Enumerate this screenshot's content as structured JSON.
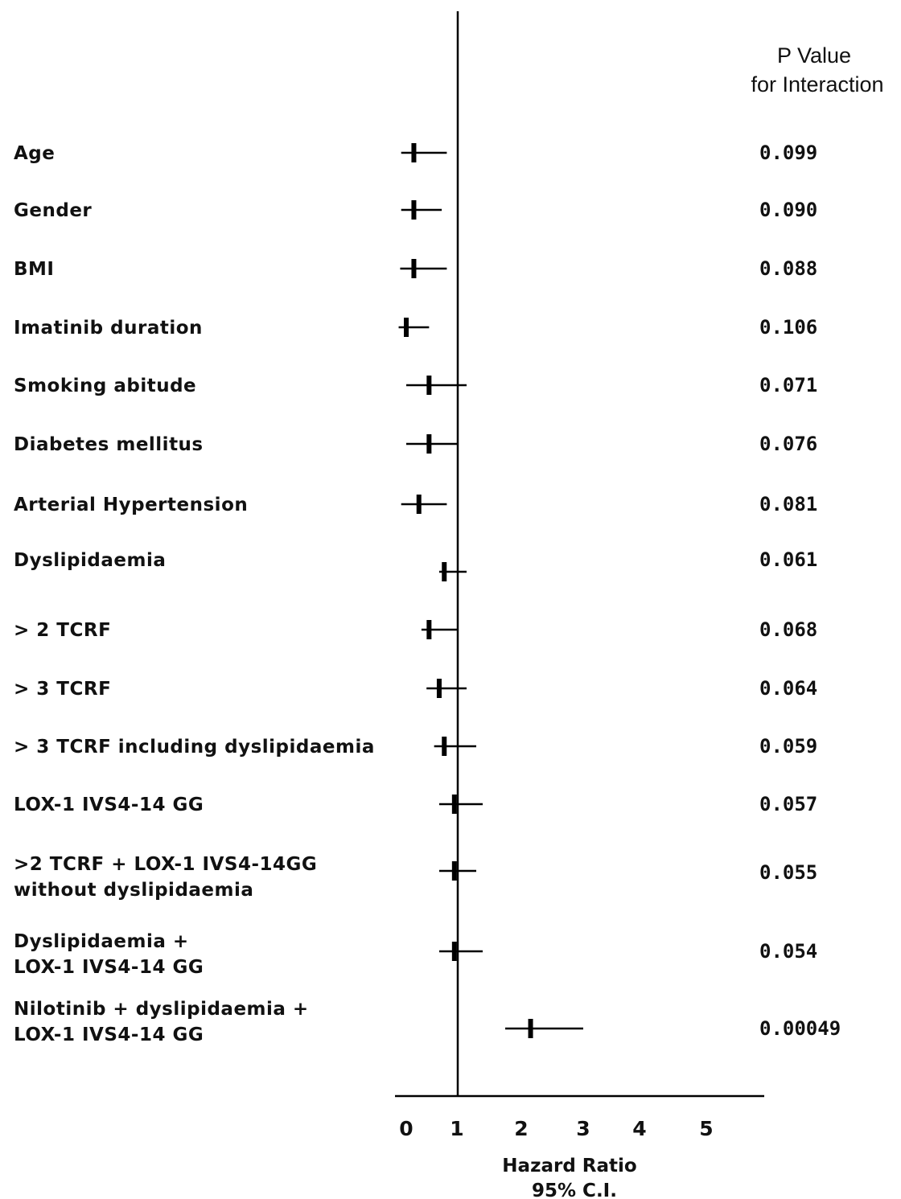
{
  "chart_data": {
    "type": "forest",
    "header": {
      "line1": "P Value",
      "line2": "for Interaction"
    },
    "xlabel": {
      "line1": "Hazard Ratio",
      "line2": "95% C.I."
    },
    "xticks": [
      {
        "value": 0,
        "label": "0"
      },
      {
        "value": 1,
        "label": "1"
      },
      {
        "value": 2,
        "label": "2"
      },
      {
        "value": 3,
        "label": "3"
      },
      {
        "value": 4,
        "label": "4"
      },
      {
        "value": 5,
        "label": "5"
      }
    ],
    "reference_line": 1,
    "rows": [
      {
        "label": [
          "Age"
        ],
        "hr": 0.15,
        "lo": -0.1,
        "hi": 0.8,
        "p": "0.099"
      },
      {
        "label": [
          "Gender"
        ],
        "hr": 0.15,
        "lo": -0.1,
        "hi": 0.7,
        "p": "0.090"
      },
      {
        "label": [
          "BMI"
        ],
        "hr": 0.15,
        "lo": -0.12,
        "hi": 0.8,
        "p": "0.088"
      },
      {
        "label": [
          "Imatinib duration"
        ],
        "hr": 0.0,
        "lo": -0.15,
        "hi": 0.45,
        "p": "0.106"
      },
      {
        "label": [
          "Smoking abitude"
        ],
        "hr": 0.45,
        "lo": 0.0,
        "hi": 1.15,
        "p": "0.071"
      },
      {
        "label": [
          "Diabetes mellitus"
        ],
        "hr": 0.45,
        "lo": 0.0,
        "hi": 1.0,
        "p": "0.076"
      },
      {
        "label": [
          "Arterial Hypertension"
        ],
        "hr": 0.25,
        "lo": -0.1,
        "hi": 0.8,
        "p": "0.081"
      },
      {
        "label": [
          "Dyslipidaemia"
        ],
        "hr": 0.75,
        "lo": 0.65,
        "hi": 1.15,
        "p": "0.061"
      },
      {
        "label": [
          "> 2 TCRF"
        ],
        "hr": 0.45,
        "lo": 0.3,
        "hi": 1.0,
        "p": "0.068"
      },
      {
        "label": [
          "> 3 TCRF"
        ],
        "hr": 0.65,
        "lo": 0.4,
        "hi": 1.15,
        "p": "0.064"
      },
      {
        "label": [
          "> 3 TCRF including dyslipidaemia"
        ],
        "hr": 0.75,
        "lo": 0.55,
        "hi": 1.3,
        "p": "0.059"
      },
      {
        "label": [
          "LOX-1 IVS4-14 GG"
        ],
        "hr": 0.95,
        "lo": 0.65,
        "hi": 1.4,
        "p": "0.057"
      },
      {
        "label": [
          ">2 TCRF + LOX-1 IVS4-14GG",
          "without dyslipidaemia"
        ],
        "hr": 0.95,
        "lo": 0.65,
        "hi": 1.3,
        "p": "0.055"
      },
      {
        "label": [
          "Dyslipidaemia +",
          "LOX-1 IVS4-14 GG"
        ],
        "hr": 0.95,
        "lo": 0.65,
        "hi": 1.4,
        "p": "0.054"
      },
      {
        "label": [
          "Nilotinib + dyslipidaemia +",
          "LOX-1 IVS4-14 GG"
        ],
        "hr": 2.15,
        "lo": 1.75,
        "hi": 3.0,
        "p": "0.00049"
      }
    ]
  }
}
